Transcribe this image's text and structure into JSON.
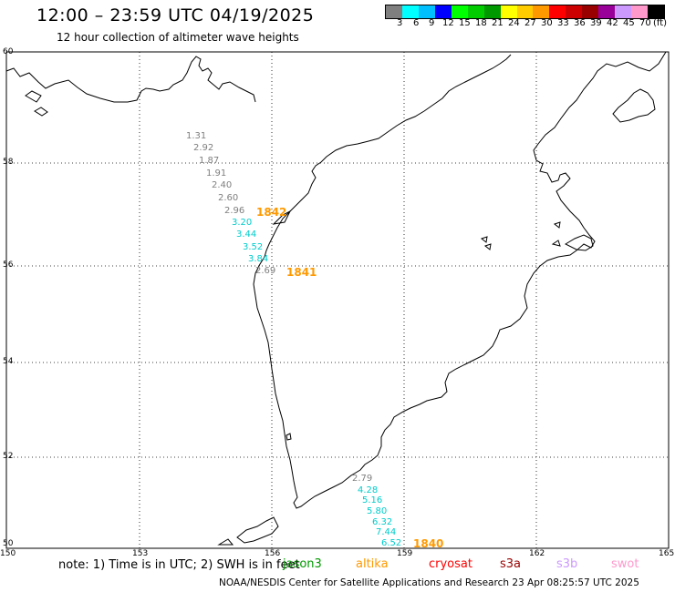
{
  "title": "12:00 – 23:59 UTC 04/19/2025",
  "subtitle": "12 hour collection of altimeter wave heights",
  "legend": {
    "colors": [
      "#7f7f7f",
      "#00ffff",
      "#00bfff",
      "#0000ff",
      "#00ff00",
      "#00cc00",
      "#009900",
      "#ffff00",
      "#ffcc00",
      "#ff9900",
      "#ff0000",
      "#cc0000",
      "#990000",
      "#990099",
      "#cc99ff",
      "#ff99cc",
      "#000000"
    ],
    "labels": [
      "3",
      "6",
      "9",
      "12",
      "15",
      "18",
      "21",
      "24",
      "27",
      "30",
      "33",
      "36",
      "39",
      "42",
      "45",
      "70"
    ],
    "unit": "(ft)"
  },
  "lat_labels": [
    "60",
    "58",
    "56",
    "54",
    "52",
    "50"
  ],
  "lon_labels": [
    "150",
    "153",
    "156",
    "159",
    "162",
    "165"
  ],
  "swh_values": [
    {
      "v": "1.31",
      "c": "#7f7f7f"
    },
    {
      "v": "2.92",
      "c": "#7f7f7f"
    },
    {
      "v": "1.87",
      "c": "#7f7f7f"
    },
    {
      "v": "1.91",
      "c": "#7f7f7f"
    },
    {
      "v": "2.40",
      "c": "#7f7f7f"
    },
    {
      "v": "2.60",
      "c": "#7f7f7f"
    },
    {
      "v": "2.96",
      "c": "#7f7f7f"
    },
    {
      "v": "3.20",
      "c": "#00cccc"
    },
    {
      "v": "3.44",
      "c": "#00cccc"
    },
    {
      "v": "3.52",
      "c": "#00cccc"
    },
    {
      "v": "3.84",
      "c": "#00cccc"
    },
    {
      "v": "2.69",
      "c": "#7f7f7f"
    },
    {
      "v": "2.79",
      "c": "#7f7f7f"
    },
    {
      "v": "4.28",
      "c": "#00cccc"
    },
    {
      "v": "5.16",
      "c": "#00cccc"
    },
    {
      "v": "5.80",
      "c": "#00cccc"
    },
    {
      "v": "6.32",
      "c": "#00cccc"
    },
    {
      "v": "7.44",
      "c": "#00cccc"
    },
    {
      "v": "6.52",
      "c": "#00cccc"
    }
  ],
  "track_labels": [
    "1842",
    "1841",
    "1840"
  ],
  "note": "note: 1) Time is in UTC; 2) SWH is in feet",
  "sources": [
    {
      "name": "jason3",
      "color": "#009900"
    },
    {
      "name": "altika",
      "color": "#ff9900"
    },
    {
      "name": "cryosat",
      "color": "#ff0000"
    },
    {
      "name": "s3a",
      "color": "#990000"
    },
    {
      "name": "s3b",
      "color": "#cc99ff"
    },
    {
      "name": "swot",
      "color": "#ff99cc"
    }
  ],
  "footer": "NOAA/NESDIS Center for Satellite Applications and Research    23 Apr 08:25:57 UTC 2025",
  "colors": {
    "track": "#ff9900",
    "grey": "#7f7f7f",
    "cyan": "#00cccc"
  }
}
